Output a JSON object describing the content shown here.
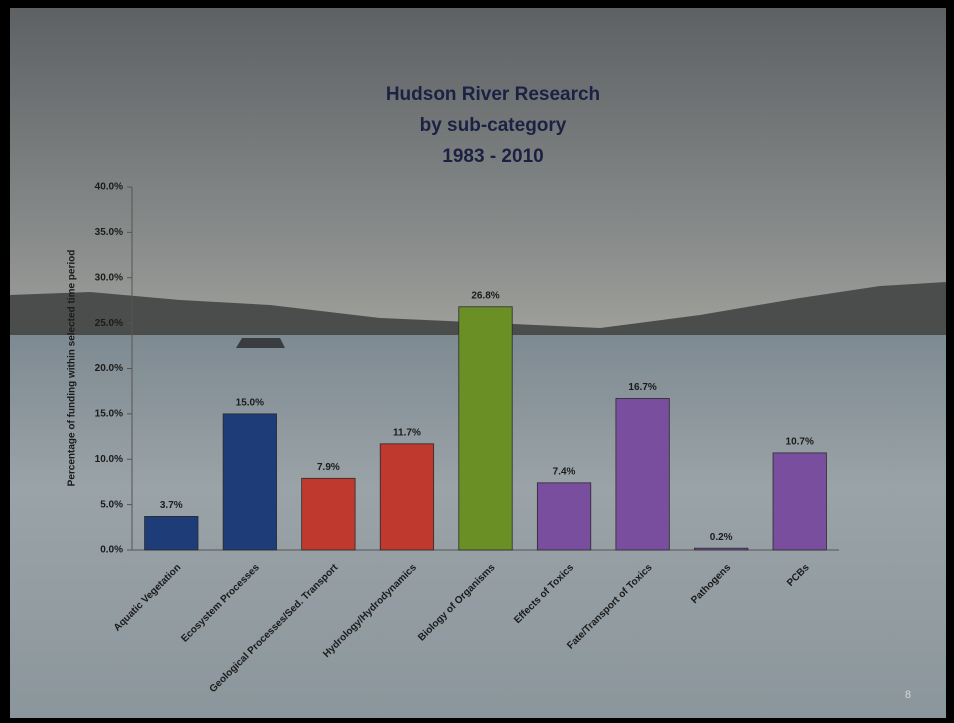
{
  "chart_data": {
    "type": "bar",
    "title": [
      "Hudson River Research",
      "by sub-category",
      "1983 - 2010"
    ],
    "y_label": "Percentage of funding within selected time period",
    "categories": [
      "Aquatic Vegetation",
      "Ecosystem Processes",
      "Geological Processes/Sed. Transport",
      "Hydrology/Hydrodynamics",
      "Biology of Organisms",
      "Effects of Toxics",
      "Fate/Transport of Toxics",
      "Pathogens",
      "PCBs"
    ],
    "values": [
      3.7,
      15.0,
      7.9,
      11.7,
      26.8,
      7.4,
      16.7,
      0.2,
      10.7
    ],
    "value_labels": [
      "3.7%",
      "15.0%",
      "7.9%",
      "11.7%",
      "26.8%",
      "7.4%",
      "16.7%",
      "0.2%",
      "10.7%"
    ],
    "colors": [
      "#1d3c78",
      "#1d3c78",
      "#c0392f",
      "#c0392f",
      "#6a8f24",
      "#7a4e9f",
      "#7a4e9f",
      "#7a4e9f",
      "#7a4e9f"
    ],
    "ylim": [
      0,
      40
    ],
    "yticks": [
      {
        "value": 0,
        "label": "0.0%"
      },
      {
        "value": 5,
        "label": "5.0%"
      },
      {
        "value": 10,
        "label": "10.0%"
      },
      {
        "value": 15,
        "label": "15.0%"
      },
      {
        "value": 20,
        "label": "20.0%"
      },
      {
        "value": 25,
        "label": "25.0%"
      },
      {
        "value": 30,
        "label": "30.0%"
      },
      {
        "value": 35,
        "label": "35.0%"
      },
      {
        "value": 40,
        "label": "40.0%"
      }
    ],
    "grid": false
  },
  "page_number": "8"
}
